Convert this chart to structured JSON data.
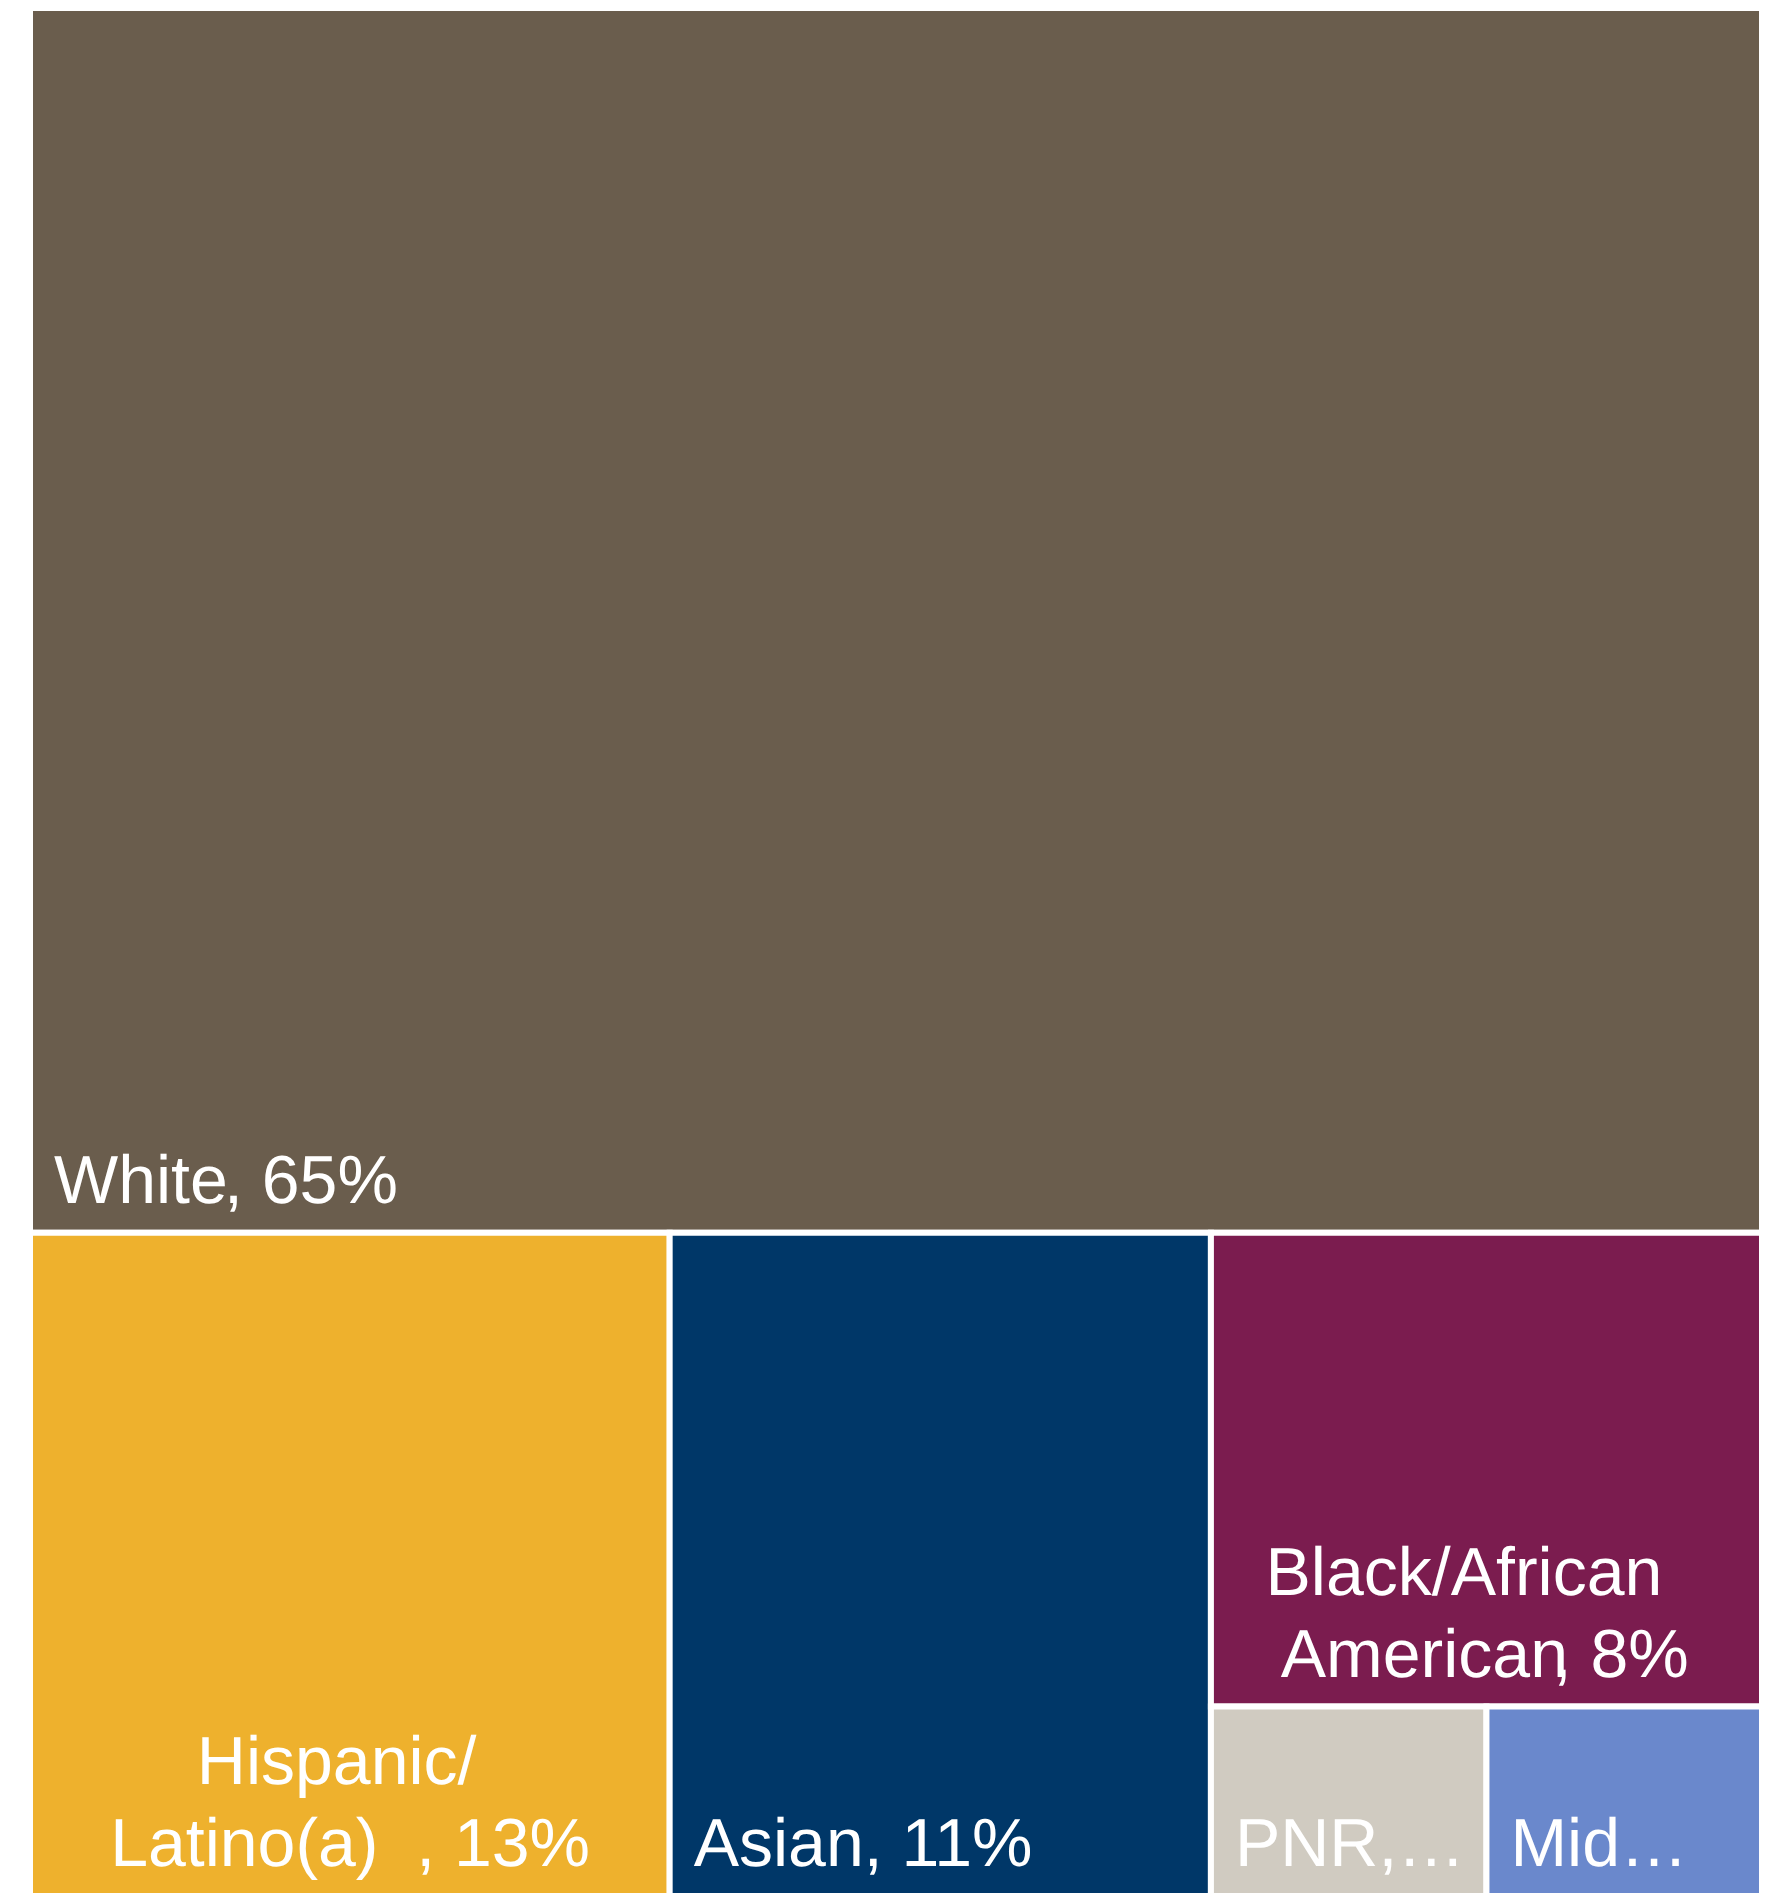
{
  "chart_data": {
    "type": "other",
    "categories": [
      "White",
      "Hispanic/ Latino(a)",
      "Asian",
      "Black/African American",
      "PNR,…",
      "Mid…"
    ],
    "values": [
      65,
      13,
      11,
      8,
      null,
      null
    ],
    "value_labels": [
      ", 65%",
      ", 13%",
      ", 11%",
      ", 8%",
      null,
      null
    ],
    "colors": [
      "#6a5d4d",
      "#eeb12d",
      "#003768",
      "#7b1c4f",
      "#d0cbc1",
      "#6a88cc"
    ]
  }
}
